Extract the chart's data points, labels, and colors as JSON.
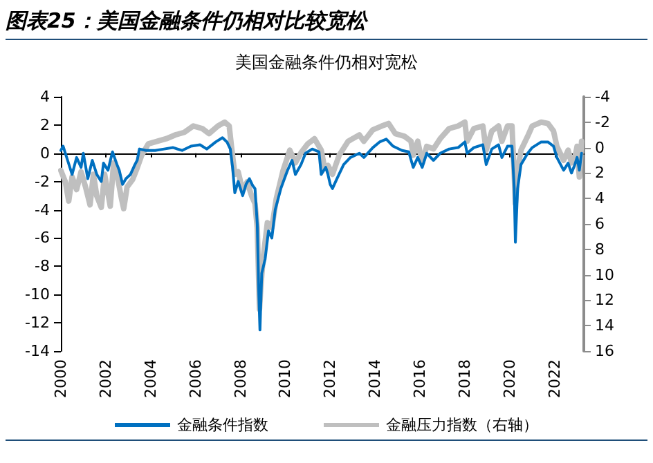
{
  "chart_data": {
    "type": "line",
    "title": "图表25：美国金融条件仍相对比较宽松",
    "subtitle": "美国金融条件仍相对宽松",
    "xlim": [
      2000,
      2023.3
    ],
    "xticks": [
      2000,
      2002,
      2004,
      2006,
      2008,
      2010,
      2012,
      2014,
      2016,
      2018,
      2020,
      2022
    ],
    "ylim": [
      -14,
      4
    ],
    "yticks": [
      -14,
      -12,
      -10,
      -8,
      -6,
      -4,
      -2,
      0,
      2,
      4
    ],
    "y2lim": [
      16,
      -4
    ],
    "y2ticks": [
      16,
      14,
      12,
      10,
      8,
      6,
      4,
      2,
      0,
      -2,
      -4
    ],
    "legend": "bottom",
    "marker": "none",
    "line_style": "solid",
    "series": [
      {
        "name": "金融压力指数（右轴）",
        "color": "#bfbfbf",
        "axis": "y2",
        "x": [
          2000.0,
          2000.2,
          2000.35,
          2000.5,
          2000.7,
          2000.9,
          2001.1,
          2001.3,
          2001.45,
          2001.6,
          2001.8,
          2001.95,
          2002.2,
          2002.35,
          2002.5,
          2002.7,
          2002.8,
          2002.95,
          2003.2,
          2003.4,
          2003.6,
          2003.9,
          2004.3,
          2004.7,
          2005.1,
          2005.5,
          2005.9,
          2006.3,
          2006.6,
          2007.0,
          2007.3,
          2007.5,
          2007.6,
          2007.75,
          2007.9,
          2008.1,
          2008.3,
          2008.5,
          2008.65,
          2008.75,
          2008.85,
          2008.9,
          2009.0,
          2009.2,
          2009.4,
          2009.6,
          2009.9,
          2010.2,
          2010.45,
          2010.7,
          2011.0,
          2011.3,
          2011.6,
          2011.75,
          2011.9,
          2012.1,
          2012.4,
          2012.8,
          2013.3,
          2013.5,
          2013.9,
          2014.3,
          2014.6,
          2014.9,
          2015.3,
          2015.6,
          2015.7,
          2015.9,
          2016.1,
          2016.3,
          2016.6,
          2016.9,
          2017.3,
          2017.7,
          2018.0,
          2018.1,
          2018.4,
          2018.8,
          2018.95,
          2019.2,
          2019.5,
          2019.65,
          2019.9,
          2020.1,
          2020.2,
          2020.25,
          2020.35,
          2020.5,
          2020.8,
          2021.0,
          2021.4,
          2021.7,
          2021.95,
          2022.1,
          2022.4,
          2022.6,
          2022.75,
          2022.9,
          2023.0,
          2023.1,
          2023.2
        ],
        "values": [
          1.8,
          2.7,
          4.2,
          2.3,
          3.3,
          1.9,
          3.1,
          4.5,
          2.1,
          3.8,
          4.7,
          2.1,
          4.6,
          1.2,
          2.1,
          4.0,
          4.8,
          3.1,
          2.5,
          1.6,
          0.6,
          -0.3,
          -0.5,
          -0.7,
          -1.0,
          -1.2,
          -1.7,
          -1.5,
          -1.1,
          -1.7,
          -2.0,
          -1.7,
          -0.1,
          2.1,
          1.9,
          3.4,
          2.7,
          3.8,
          4.4,
          6.3,
          12.7,
          11.2,
          8.9,
          5.9,
          6.3,
          4.0,
          1.8,
          0.2,
          1.2,
          0.4,
          -0.3,
          -0.7,
          0.2,
          1.6,
          1.4,
          2.1,
          0.6,
          -0.5,
          -1.0,
          -0.5,
          -1.4,
          -1.7,
          -1.9,
          -1.1,
          -0.9,
          -0.5,
          0.6,
          -0.5,
          1.2,
          -0.1,
          0.1,
          -0.7,
          -1.5,
          -1.7,
          -2.0,
          -0.5,
          -1.5,
          -1.7,
          0.2,
          -1.3,
          -1.7,
          -0.5,
          -1.7,
          -1.7,
          2.1,
          4.4,
          1.8,
          0.2,
          -0.9,
          -1.7,
          -2.0,
          -1.9,
          -1.3,
          -0.1,
          1.0,
          0.2,
          1.2,
          0.8,
          -0.1,
          2.3,
          -0.5
        ]
      },
      {
        "name": "金融条件指数",
        "color": "#0070c0",
        "x": [
          2000.0,
          2000.1,
          2000.3,
          2000.5,
          2000.7,
          2000.9,
          2001.0,
          2001.2,
          2001.4,
          2001.6,
          2001.8,
          2001.9,
          2002.1,
          2002.3,
          2002.5,
          2002.6,
          2002.75,
          2002.9,
          2003.1,
          2003.3,
          2003.4,
          2003.5,
          2003.8,
          2004.2,
          2004.6,
          2005.0,
          2005.4,
          2005.8,
          2006.2,
          2006.5,
          2006.9,
          2007.2,
          2007.4,
          2007.55,
          2007.65,
          2007.75,
          2007.9,
          2008.1,
          2008.25,
          2008.4,
          2008.55,
          2008.65,
          2008.75,
          2008.82,
          2008.87,
          2008.95,
          2009.1,
          2009.25,
          2009.4,
          2009.55,
          2009.8,
          2010.1,
          2010.3,
          2010.45,
          2010.7,
          2010.9,
          2011.2,
          2011.5,
          2011.6,
          2011.8,
          2011.9,
          2012.0,
          2012.1,
          2012.3,
          2012.6,
          2012.9,
          2013.3,
          2013.5,
          2013.9,
          2014.2,
          2014.5,
          2014.8,
          2015.2,
          2015.5,
          2015.7,
          2015.9,
          2016.1,
          2016.3,
          2016.6,
          2016.9,
          2017.3,
          2017.7,
          2018.0,
          2018.1,
          2018.4,
          2018.8,
          2018.95,
          2019.2,
          2019.5,
          2019.65,
          2019.9,
          2020.1,
          2020.2,
          2020.25,
          2020.35,
          2020.5,
          2020.8,
          2021.0,
          2021.4,
          2021.7,
          2021.95,
          2022.1,
          2022.4,
          2022.6,
          2022.75,
          2022.9,
          2023.0,
          2023.1,
          2023.2
        ],
        "values": [
          0.2,
          0.5,
          -0.5,
          -1.5,
          -0.3,
          -1.0,
          0,
          -1.8,
          -0.5,
          -1.5,
          -2.0,
          -0.7,
          -1.2,
          0.1,
          -0.8,
          -1.2,
          -2.2,
          -1.8,
          -1.5,
          -0.8,
          -0.5,
          0.3,
          0.2,
          0.2,
          0.3,
          0.4,
          0.2,
          0.5,
          0.6,
          0.3,
          0.8,
          1.1,
          0.8,
          0.3,
          -1.0,
          -2.8,
          -2.0,
          -3.0,
          -2.2,
          -1.8,
          -2.3,
          -2.5,
          -5,
          -10,
          -12.5,
          -8.5,
          -7.5,
          -5.5,
          -6,
          -4,
          -2.5,
          -1.2,
          -0.5,
          -1.5,
          -0.8,
          0,
          0.3,
          0.1,
          -1.5,
          -1.0,
          -1.5,
          -2.2,
          -2.5,
          -1.8,
          -0.8,
          -0.3,
          0,
          -0.3,
          0.4,
          0.8,
          1.0,
          0.5,
          0.2,
          0.1,
          -1.0,
          -0.3,
          -1.0,
          0,
          -0.5,
          0,
          0.3,
          0.4,
          0.8,
          0,
          0.4,
          0.6,
          -0.8,
          0.3,
          0.6,
          -0.3,
          0.5,
          0.5,
          -2.5,
          -6.3,
          -2.5,
          -0.8,
          0,
          0.4,
          0.8,
          0.8,
          0.5,
          -0.3,
          -1.2,
          -0.7,
          -1.4,
          -0.8,
          -0.3,
          -1.2,
          0
        ]
      }
    ]
  }
}
